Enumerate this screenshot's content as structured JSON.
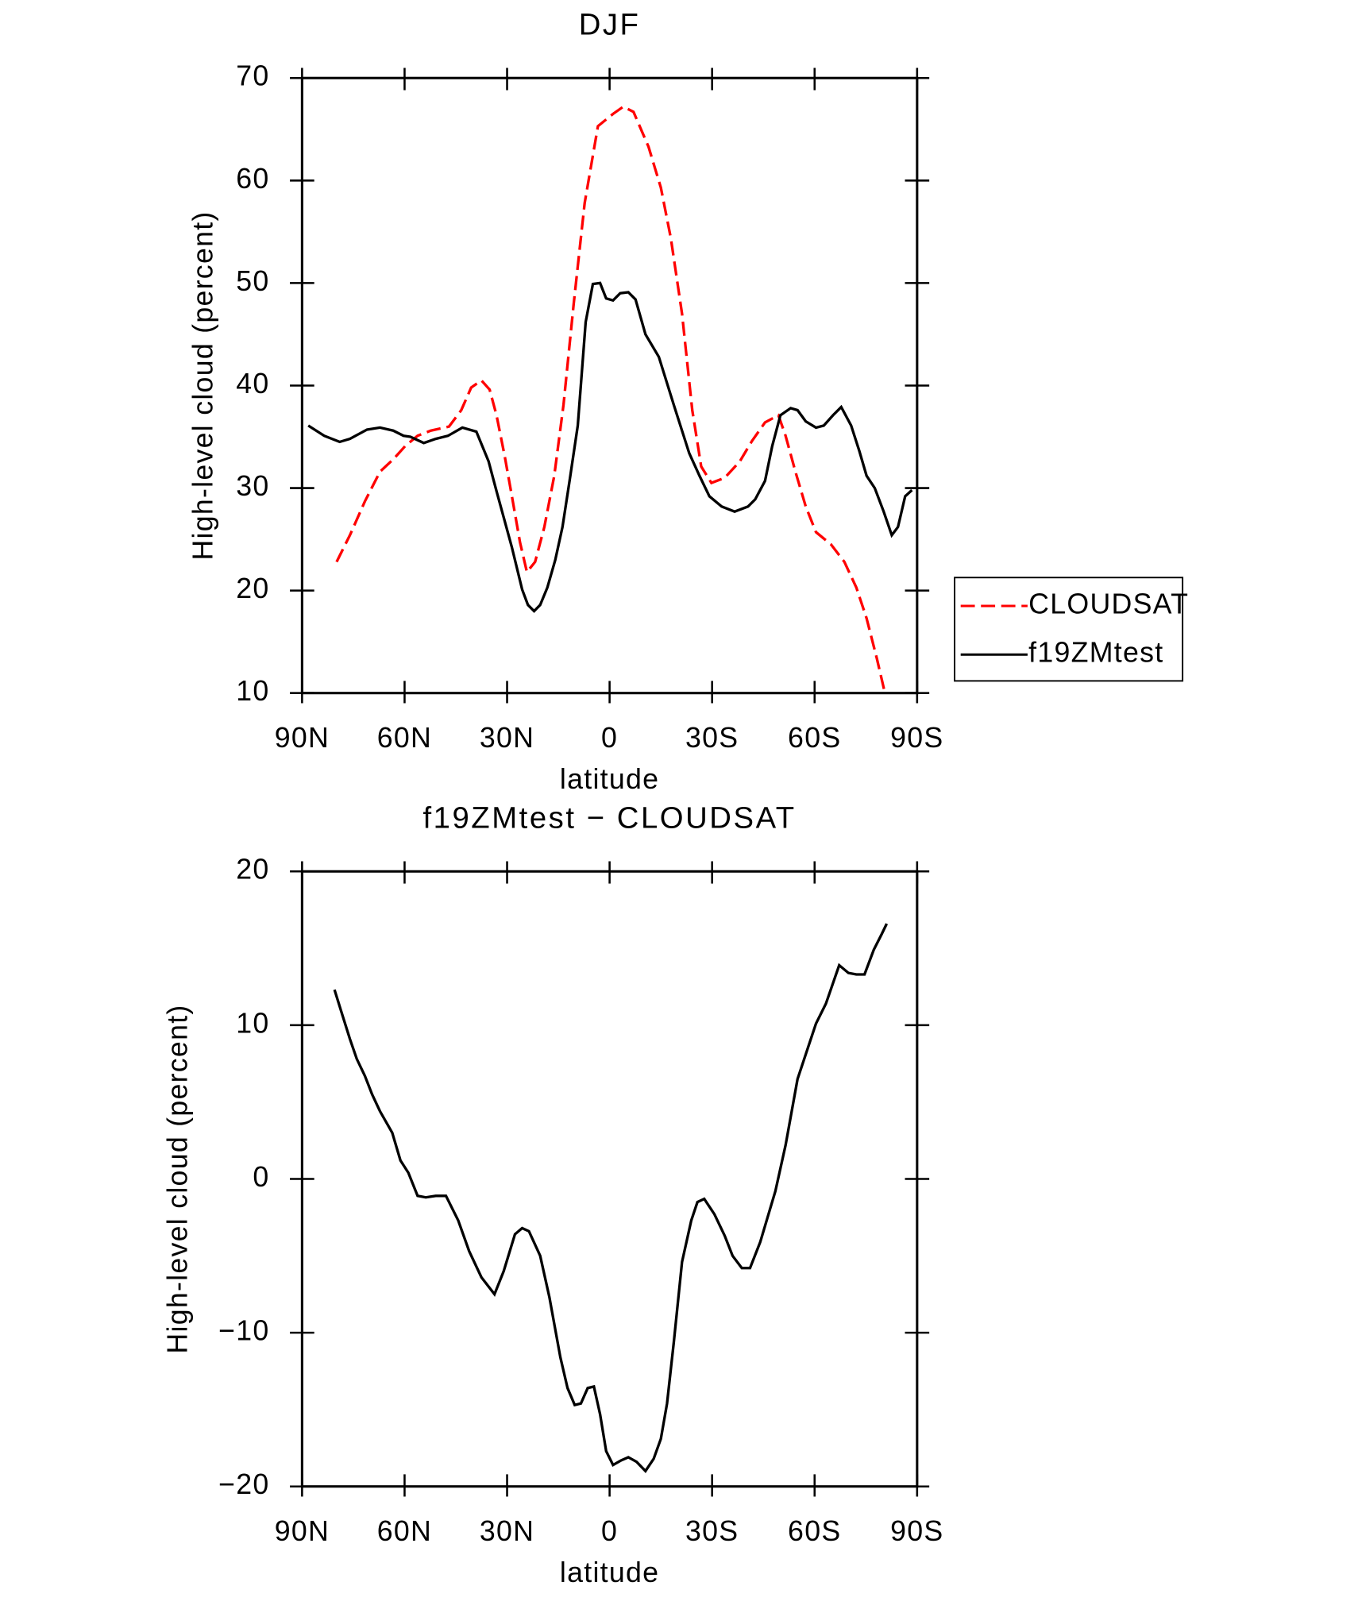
{
  "chart_data": [
    {
      "type": "line",
      "title": "DJF",
      "xlabel": "latitude",
      "ylabel": "High-level cloud (percent)",
      "xlim": [
        90,
        -90
      ],
      "xticks": [
        {
          "value": 90,
          "label": "90N"
        },
        {
          "value": 60,
          "label": "60N"
        },
        {
          "value": 30,
          "label": "30N"
        },
        0,
        {
          "value": -30,
          "label": "30S"
        },
        {
          "value": -60,
          "label": "60S"
        },
        {
          "value": -90,
          "label": "90S"
        }
      ],
      "ylim": [
        10,
        70
      ],
      "yticks": [
        10,
        20,
        30,
        40,
        50,
        60,
        70
      ],
      "legend": "right",
      "series": [
        {
          "name": "CLOUDSAT",
          "color": "#ff0000",
          "style": "dashed",
          "x": [
            79.9,
            76,
            71.6,
            67.2,
            63.3,
            59.8,
            56.2,
            52.3,
            47,
            43.4,
            40.5,
            37.5,
            35.1,
            33.1,
            30.7,
            28.6,
            26.2,
            24.2,
            21.8,
            19.1,
            16.2,
            13.5,
            10.5,
            7.3,
            3.4,
            -1,
            -4,
            -7,
            -11.4,
            -15,
            -17.9,
            -21.2,
            -24.2,
            -26.8,
            -29.8,
            -33.7,
            -38.1,
            -41.7,
            -45.5,
            -49.4,
            -51.5,
            -54.4,
            -57.4,
            -60.4,
            -64.8,
            -68.7,
            -72.2,
            -75.2,
            -78.2,
            -80.5
          ],
          "values": [
            22.8,
            25.4,
            28.7,
            31.6,
            32.8,
            34.1,
            35.1,
            35.6,
            36,
            37.6,
            39.8,
            40.5,
            39.6,
            37.1,
            33.1,
            29.2,
            24.7,
            21.8,
            22.8,
            26.2,
            31.2,
            38.1,
            48,
            57.8,
            65.3,
            66.5,
            67.2,
            66.7,
            63.3,
            59.3,
            54.4,
            47,
            37.6,
            32.1,
            30.5,
            31,
            32.6,
            34.6,
            36.4,
            37.1,
            35.1,
            31.6,
            28.2,
            25.7,
            24.5,
            22.8,
            20.3,
            17.3,
            13.4,
            10.1
          ]
        },
        {
          "name": "f19ZMtest",
          "color": "#000000",
          "style": "solid",
          "x": [
            88.2,
            83.5,
            79,
            76,
            71,
            67.2,
            63.3,
            60.3,
            58.3,
            54.4,
            50.9,
            47.3,
            43.1,
            39,
            35.4,
            33.1,
            28.6,
            25.6,
            23.9,
            22.1,
            20.3,
            18.2,
            15.9,
            13.8,
            11.7,
            9.3,
            7,
            4.9,
            2.8,
            1,
            -1,
            -3.1,
            -5.5,
            -7.6,
            -10.5,
            -14.4,
            -18.8,
            -23.3,
            -26.3,
            -29.2,
            -32.8,
            -36.6,
            -40.5,
            -42.6,
            -45.5,
            -47.6,
            -50,
            -53,
            -55,
            -57.4,
            -60.4,
            -62.7,
            -65.4,
            -67.8,
            -70.7,
            -73.1,
            -75.2,
            -77.6,
            -80.2,
            -82.6,
            -84.4,
            -86.5,
            -88.5
          ],
          "values": [
            36.1,
            35.1,
            34.5,
            34.8,
            35.7,
            35.9,
            35.6,
            35.1,
            35,
            34.4,
            34.8,
            35.1,
            35.9,
            35.5,
            32.6,
            29.7,
            24.2,
            20.1,
            18.6,
            18,
            18.6,
            20.3,
            23,
            26.2,
            30.7,
            36.1,
            46.2,
            49.9,
            50,
            48.5,
            48.3,
            49,
            49.1,
            48.4,
            45,
            42.8,
            38.1,
            33.4,
            31.2,
            29.2,
            28.2,
            27.7,
            28.2,
            28.9,
            30.7,
            34.1,
            37.1,
            37.8,
            37.6,
            36.5,
            35.9,
            36.1,
            37.1,
            37.9,
            36.1,
            33.6,
            31.2,
            30,
            27.7,
            25.4,
            26.2,
            29.2,
            29.8
          ]
        }
      ]
    },
    {
      "type": "line",
      "title": "f19ZMtest − CLOUDSAT",
      "xlabel": "latitude",
      "ylabel": "High-level cloud (percent)",
      "xlim": [
        90,
        -90
      ],
      "xticks": [
        {
          "value": 90,
          "label": "90N"
        },
        {
          "value": 60,
          "label": "60N"
        },
        {
          "value": 30,
          "label": "30N"
        },
        0,
        {
          "value": -30,
          "label": "30S"
        },
        {
          "value": -60,
          "label": "60S"
        },
        {
          "value": -90,
          "label": "90S"
        }
      ],
      "ylim": [
        -20,
        20
      ],
      "yticks": [
        {
          "value": -20,
          "label": "−20"
        },
        {
          "value": -10,
          "label": "−10"
        },
        0,
        10,
        20
      ],
      "series": [
        {
          "color": "#000000",
          "style": "solid",
          "x": [
            80.5,
            78.4,
            76,
            74,
            71.6,
            69.5,
            67.2,
            63.6,
            61.2,
            58.9,
            56.2,
            53.8,
            50.9,
            47.9,
            44.3,
            41.1,
            37.5,
            33.7,
            31,
            27.7,
            25.6,
            23.6,
            20.3,
            17.6,
            14.4,
            12.3,
            10.2,
            8.4,
            6.4,
            4.6,
            2.8,
            1,
            -1,
            -3.4,
            -5.5,
            -7.9,
            -10.5,
            -12.9,
            -15,
            -16.8,
            -18.8,
            -21.2,
            -23.9,
            -25.7,
            -27.7,
            -30.7,
            -33.7,
            -36,
            -38.7,
            -41.1,
            -44.1,
            -48.5,
            -51.5,
            -55,
            -58,
            -60.4,
            -63.3,
            -67.2,
            -69.9,
            -72.2,
            -74.6,
            -77.3,
            -79.6,
            -81.1
          ],
          "values": [
            12.3,
            10.8,
            9.1,
            7.8,
            6.7,
            5.5,
            4.4,
            3,
            1.2,
            0.4,
            -1.1,
            -1.2,
            -1.1,
            -1.1,
            -2.7,
            -4.7,
            -6.4,
            -7.5,
            -6,
            -3.6,
            -3.2,
            -3.4,
            -5,
            -7.7,
            -11.6,
            -13.6,
            -14.7,
            -14.6,
            -13.6,
            -13.5,
            -15.3,
            -17.7,
            -18.6,
            -18.3,
            -18.1,
            -18.4,
            -19,
            -18.2,
            -16.9,
            -14.6,
            -10.6,
            -5.4,
            -2.7,
            -1.5,
            -1.3,
            -2.3,
            -3.7,
            -5,
            -5.8,
            -5.8,
            -4.1,
            -0.8,
            2.2,
            6.5,
            8.5,
            10.1,
            11.4,
            13.9,
            13.4,
            13.3,
            13.3,
            14.9,
            15.9,
            16.6
          ]
        }
      ]
    }
  ]
}
